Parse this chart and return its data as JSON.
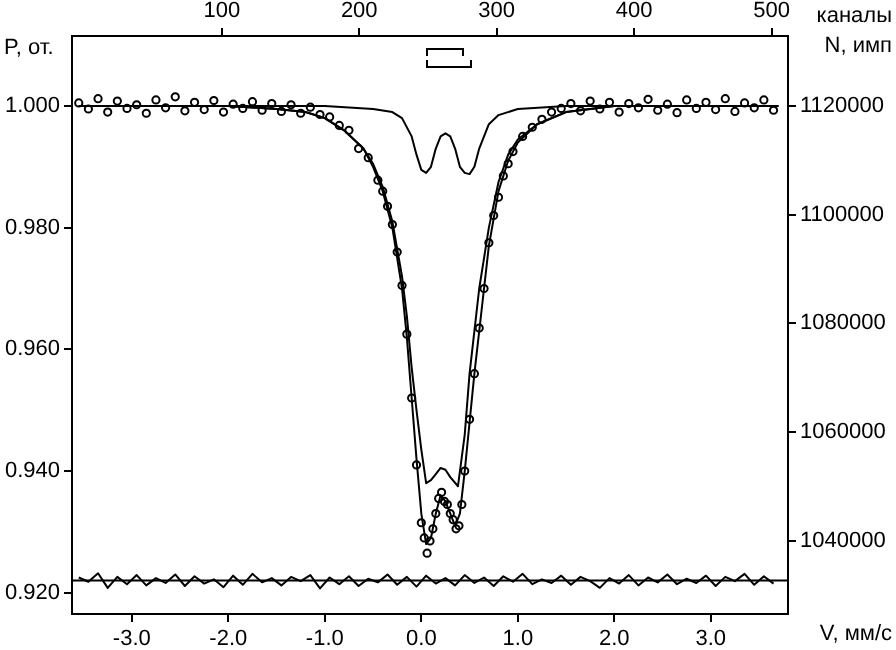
{
  "chart_data": {
    "type": "scatter",
    "xlabel": "V, мм/с",
    "ylabel": "P, от.",
    "y2label": "N, имп",
    "x2label": "каналы",
    "xlim": [
      -3.62,
      3.8
    ],
    "xticks": [
      {
        "value": -3,
        "label": "-3.0"
      },
      {
        "value": -2,
        "label": "-2.0"
      },
      {
        "value": -1,
        "label": "-1.0"
      },
      {
        "value": 0,
        "label": "0.0"
      },
      {
        "value": 1,
        "label": "1.0"
      },
      {
        "value": 2,
        "label": "2.0"
      },
      {
        "value": 3,
        "label": "3.0"
      }
    ],
    "x2lim": [
      -9,
      512
    ],
    "x2ticks": [
      100,
      200,
      300,
      400,
      500
    ],
    "ylim": [
      0.9165,
      1.0115
    ],
    "yticks": [
      {
        "value": 0.92,
        "label": "0.920"
      },
      {
        "value": 0.94,
        "label": "0.940"
      },
      {
        "value": 0.96,
        "label": "0.960"
      },
      {
        "value": 0.98,
        "label": "0.980"
      },
      {
        "value": 1,
        "label": "1.000"
      }
    ],
    "y2lim": [
      1026500,
      1132900
    ],
    "y2ticks": [
      1040000,
      1060000,
      1080000,
      1100000,
      1120000
    ],
    "grid": false,
    "legend": false,
    "ref_lines": [
      {
        "axis": "y",
        "value": 0.922,
        "color": "#000000"
      }
    ],
    "series": [
      {
        "type": "scatter",
        "marker": "circle",
        "color": "#000000",
        "x": [
          -3.55,
          -3.45,
          -3.35,
          -3.25,
          -3.15,
          -3.05,
          -2.95,
          -2.85,
          -2.75,
          -2.65,
          -2.55,
          -2.45,
          -2.35,
          -2.25,
          -2.15,
          -2.05,
          -1.95,
          -1.85,
          -1.75,
          -1.65,
          -1.55,
          -1.45,
          -1.35,
          -1.25,
          -1.15,
          -1.05,
          -0.95,
          -0.85,
          -0.75,
          -0.65,
          -0.55,
          -0.45,
          -0.4,
          -0.35,
          -0.3,
          -0.25,
          -0.2,
          -0.15,
          -0.1,
          -0.05,
          0,
          0.03,
          0.06,
          0.09,
          0.12,
          0.15,
          0.18,
          0.21,
          0.24,
          0.27,
          0.3,
          0.33,
          0.36,
          0.39,
          0.42,
          0.45,
          0.5,
          0.55,
          0.6,
          0.65,
          0.7,
          0.75,
          0.8,
          0.85,
          0.9,
          0.95,
          1.05,
          1.15,
          1.25,
          1.35,
          1.45,
          1.55,
          1.65,
          1.75,
          1.85,
          1.95,
          2.05,
          2.15,
          2.25,
          2.35,
          2.45,
          2.55,
          2.65,
          2.75,
          2.85,
          2.95,
          3.05,
          3.15,
          3.25,
          3.35,
          3.45,
          3.55,
          3.65
        ],
        "values": [
          1.0005,
          0.9995,
          1.0012,
          0.999,
          1.0008,
          0.9996,
          1.0002,
          0.9988,
          1.001,
          0.9997,
          1.0015,
          0.9992,
          1.0006,
          0.9994,
          1.0009,
          0.999,
          1.0003,
          0.9996,
          1.0007,
          0.9993,
          1.0004,
          0.9991,
          1.0002,
          0.9988,
          0.9998,
          0.9986,
          0.9982,
          0.9968,
          0.996,
          0.993,
          0.9915,
          0.9878,
          0.986,
          0.9835,
          0.9805,
          0.976,
          0.9705,
          0.9625,
          0.952,
          0.941,
          0.9315,
          0.929,
          0.9265,
          0.9285,
          0.9305,
          0.933,
          0.9355,
          0.9365,
          0.935,
          0.9345,
          0.933,
          0.932,
          0.9305,
          0.931,
          0.9345,
          0.94,
          0.9485,
          0.956,
          0.9635,
          0.97,
          0.9775,
          0.982,
          0.985,
          0.9885,
          0.9905,
          0.9925,
          0.995,
          0.9965,
          0.9978,
          0.999,
          0.9996,
          1.0004,
          0.9992,
          1.0008,
          0.9995,
          1.0006,
          0.999,
          1.0004,
          0.9997,
          1.0011,
          0.9993,
          1.0003,
          0.9989,
          1.001,
          0.9996,
          1.0006,
          0.9994,
          1.0012,
          0.9991,
          1.0005,
          0.9997,
          1.001,
          0.9993
        ]
      },
      {
        "type": "line",
        "marker": "none",
        "color": "#000000",
        "x": [
          -3.55,
          -2,
          -1.5,
          -1.2,
          -1,
          -0.8,
          -0.6,
          -0.5,
          -0.4,
          -0.3,
          -0.2,
          -0.15,
          -0.1,
          -0.05,
          0,
          0.05,
          0.1,
          0.15,
          0.2,
          0.25,
          0.3,
          0.35,
          0.4,
          0.45,
          0.5,
          0.55,
          0.6,
          0.65,
          0.7,
          0.8,
          0.9,
          1,
          1.2,
          1.5,
          2,
          3.7
        ],
        "values": [
          1,
          1,
          0.9995,
          0.999,
          0.998,
          0.996,
          0.993,
          0.99,
          0.986,
          0.98,
          0.97,
          0.962,
          0.952,
          0.942,
          0.933,
          0.928,
          0.929,
          0.933,
          0.936,
          0.935,
          0.933,
          0.931,
          0.933,
          0.94,
          0.948,
          0.956,
          0.963,
          0.97,
          0.977,
          0.986,
          0.991,
          0.994,
          0.997,
          0.999,
          1,
          1
        ]
      },
      {
        "type": "line",
        "marker": "none",
        "color": "#000000",
        "x": [
          -3.55,
          -1,
          -0.5,
          -0.3,
          -0.2,
          -0.1,
          -0.05,
          0,
          0.05,
          0.1,
          0.15,
          0.2,
          0.25,
          0.3,
          0.35,
          0.4,
          0.45,
          0.5,
          0.55,
          0.6,
          0.7,
          0.8,
          1,
          1.5,
          3.7
        ],
        "values": [
          1,
          1,
          0.9995,
          0.999,
          0.998,
          0.995,
          0.992,
          0.9895,
          0.989,
          0.99,
          0.993,
          0.995,
          0.9955,
          0.995,
          0.993,
          0.99,
          0.989,
          0.9888,
          0.99,
          0.993,
          0.997,
          0.9985,
          0.9995,
          1,
          1
        ]
      },
      {
        "type": "line",
        "marker": "none",
        "color": "#000000",
        "x": [
          -3.55,
          -2,
          -1.5,
          -1.2,
          -1,
          -0.8,
          -0.6,
          -0.5,
          -0.4,
          -0.3,
          -0.2,
          -0.15,
          -0.1,
          -0.05,
          0,
          0.05,
          0.1,
          0.15,
          0.2,
          0.25,
          0.3,
          0.38,
          0.45,
          0.5,
          0.55,
          0.6,
          0.65,
          0.7,
          0.8,
          0.9,
          1,
          1.2,
          1.5,
          2,
          3.7
        ],
        "values": [
          1,
          1,
          0.9995,
          0.999,
          0.998,
          0.996,
          0.993,
          0.9905,
          0.9867,
          0.981,
          0.972,
          0.9655,
          0.957,
          0.95,
          0.9435,
          0.938,
          0.9385,
          0.9395,
          0.9405,
          0.9402,
          0.939,
          0.9375,
          0.946,
          0.956,
          0.963,
          0.97,
          0.975,
          0.98,
          0.9875,
          0.992,
          0.9945,
          0.997,
          0.999,
          1,
          1
        ]
      },
      {
        "type": "line",
        "marker": "none",
        "color": "#000000",
        "x": [
          -3.55,
          -3.45,
          -3.35,
          -3.25,
          -3.15,
          -3.05,
          -2.95,
          -2.85,
          -2.75,
          -2.65,
          -2.55,
          -2.45,
          -2.35,
          -2.25,
          -2.15,
          -2.05,
          -1.95,
          -1.85,
          -1.75,
          -1.65,
          -1.55,
          -1.45,
          -1.35,
          -1.25,
          -1.15,
          -1.05,
          -0.95,
          -0.85,
          -0.75,
          -0.65,
          -0.55,
          -0.45,
          -0.35,
          -0.25,
          -0.15,
          -0.05,
          0.05,
          0.15,
          0.25,
          0.35,
          0.45,
          0.55,
          0.65,
          0.75,
          0.85,
          0.95,
          1.05,
          1.15,
          1.25,
          1.35,
          1.45,
          1.55,
          1.65,
          1.75,
          1.85,
          1.95,
          2.05,
          2.15,
          2.25,
          2.35,
          2.45,
          2.55,
          2.65,
          2.75,
          2.85,
          2.95,
          3.05,
          3.15,
          3.25,
          3.35,
          3.45,
          3.55,
          3.65
        ],
        "values": [
          0.9225,
          0.9218,
          0.9232,
          0.9208,
          0.9226,
          0.9214,
          0.9229,
          0.9212,
          0.9224,
          0.9216,
          0.923,
          0.9211,
          0.9227,
          0.9215,
          0.9222,
          0.9209,
          0.9228,
          0.9213,
          0.9231,
          0.9217,
          0.9224,
          0.9212,
          0.9226,
          0.9219,
          0.9229,
          0.9207,
          0.9225,
          0.9214,
          0.9227,
          0.9211,
          0.9223,
          0.9217,
          0.923,
          0.9213,
          0.9226,
          0.921,
          0.9228,
          0.9215,
          0.9224,
          0.9212,
          0.9229,
          0.9216,
          0.9225,
          0.9211,
          0.9227,
          0.9218,
          0.9231,
          0.9214,
          0.9222,
          0.9216,
          0.9228,
          0.9213,
          0.9226,
          0.9219,
          0.9208,
          0.9224,
          0.9215,
          0.9229,
          0.9212,
          0.9225,
          0.9217,
          0.923,
          0.9214,
          0.9223,
          0.9216,
          0.9228,
          0.9211,
          0.9226,
          0.9219,
          0.9231,
          0.9213,
          0.9227,
          0.9215
        ]
      }
    ]
  }
}
